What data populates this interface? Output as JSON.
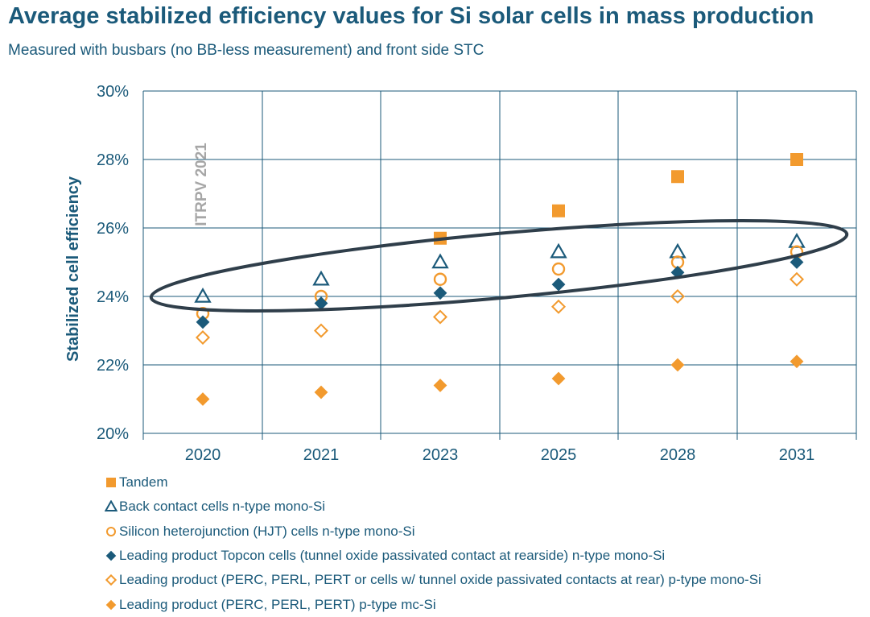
{
  "title": "Average stabilized efficiency values for Si solar cells in mass production",
  "subtitle": "Measured with busbars (no BB-less measurement) and front side STC",
  "watermark": "ITRPV 2021",
  "colors": {
    "navy": "#1b5a7a",
    "orange": "#f29a2e",
    "grid": "#1b5a7a",
    "ellipse": "#2f3e4a"
  },
  "chart_data": {
    "type": "scatter",
    "categories": [
      "2020",
      "2021",
      "2023",
      "2025",
      "2028",
      "2031"
    ],
    "ylabel": "Stabilized cell efficiency",
    "ylim": [
      20,
      30
    ],
    "yticks": [
      20,
      22,
      24,
      26,
      28,
      30
    ],
    "ytick_labels": [
      "20%",
      "22%",
      "24%",
      "26%",
      "28%",
      "30%"
    ],
    "grid": true,
    "legend_position": "bottom",
    "series": [
      {
        "name": "Tandem",
        "marker": "square-filled",
        "color": "#f29a2e",
        "values": [
          null,
          null,
          25.7,
          26.5,
          27.5,
          28.0
        ]
      },
      {
        "name": "Back contact cells n-type mono-Si",
        "marker": "triangle-open",
        "color": "#1b5a7a",
        "values": [
          24.0,
          24.5,
          25.0,
          25.3,
          25.3,
          25.6
        ]
      },
      {
        "name": "Silicon heterojunction (HJT) cells n-type mono-Si",
        "marker": "circle-open",
        "color": "#f29a2e",
        "values": [
          23.5,
          24.0,
          24.5,
          24.8,
          25.0,
          25.3
        ]
      },
      {
        "name": "Leading product Topcon cells (tunnel oxide passivated contact at rearside) n-type mono-Si",
        "marker": "diamond-filled",
        "color": "#1b5a7a",
        "values": [
          23.25,
          23.8,
          24.1,
          24.35,
          24.7,
          25.0
        ]
      },
      {
        "name": "Leading product (PERC, PERL, PERT or cells w/ tunnel oxide passivated contacts at rear) p-type mono-Si",
        "marker": "diamond-open",
        "color": "#f29a2e",
        "values": [
          22.8,
          23.0,
          23.4,
          23.7,
          24.0,
          24.5
        ]
      },
      {
        "name": "Leading product (PERC, PERL, PERT) p-type mc-Si",
        "marker": "diamond-filled",
        "color": "#f29a2e",
        "values": [
          21.0,
          21.2,
          21.4,
          21.6,
          22.0,
          22.1
        ]
      }
    ]
  }
}
